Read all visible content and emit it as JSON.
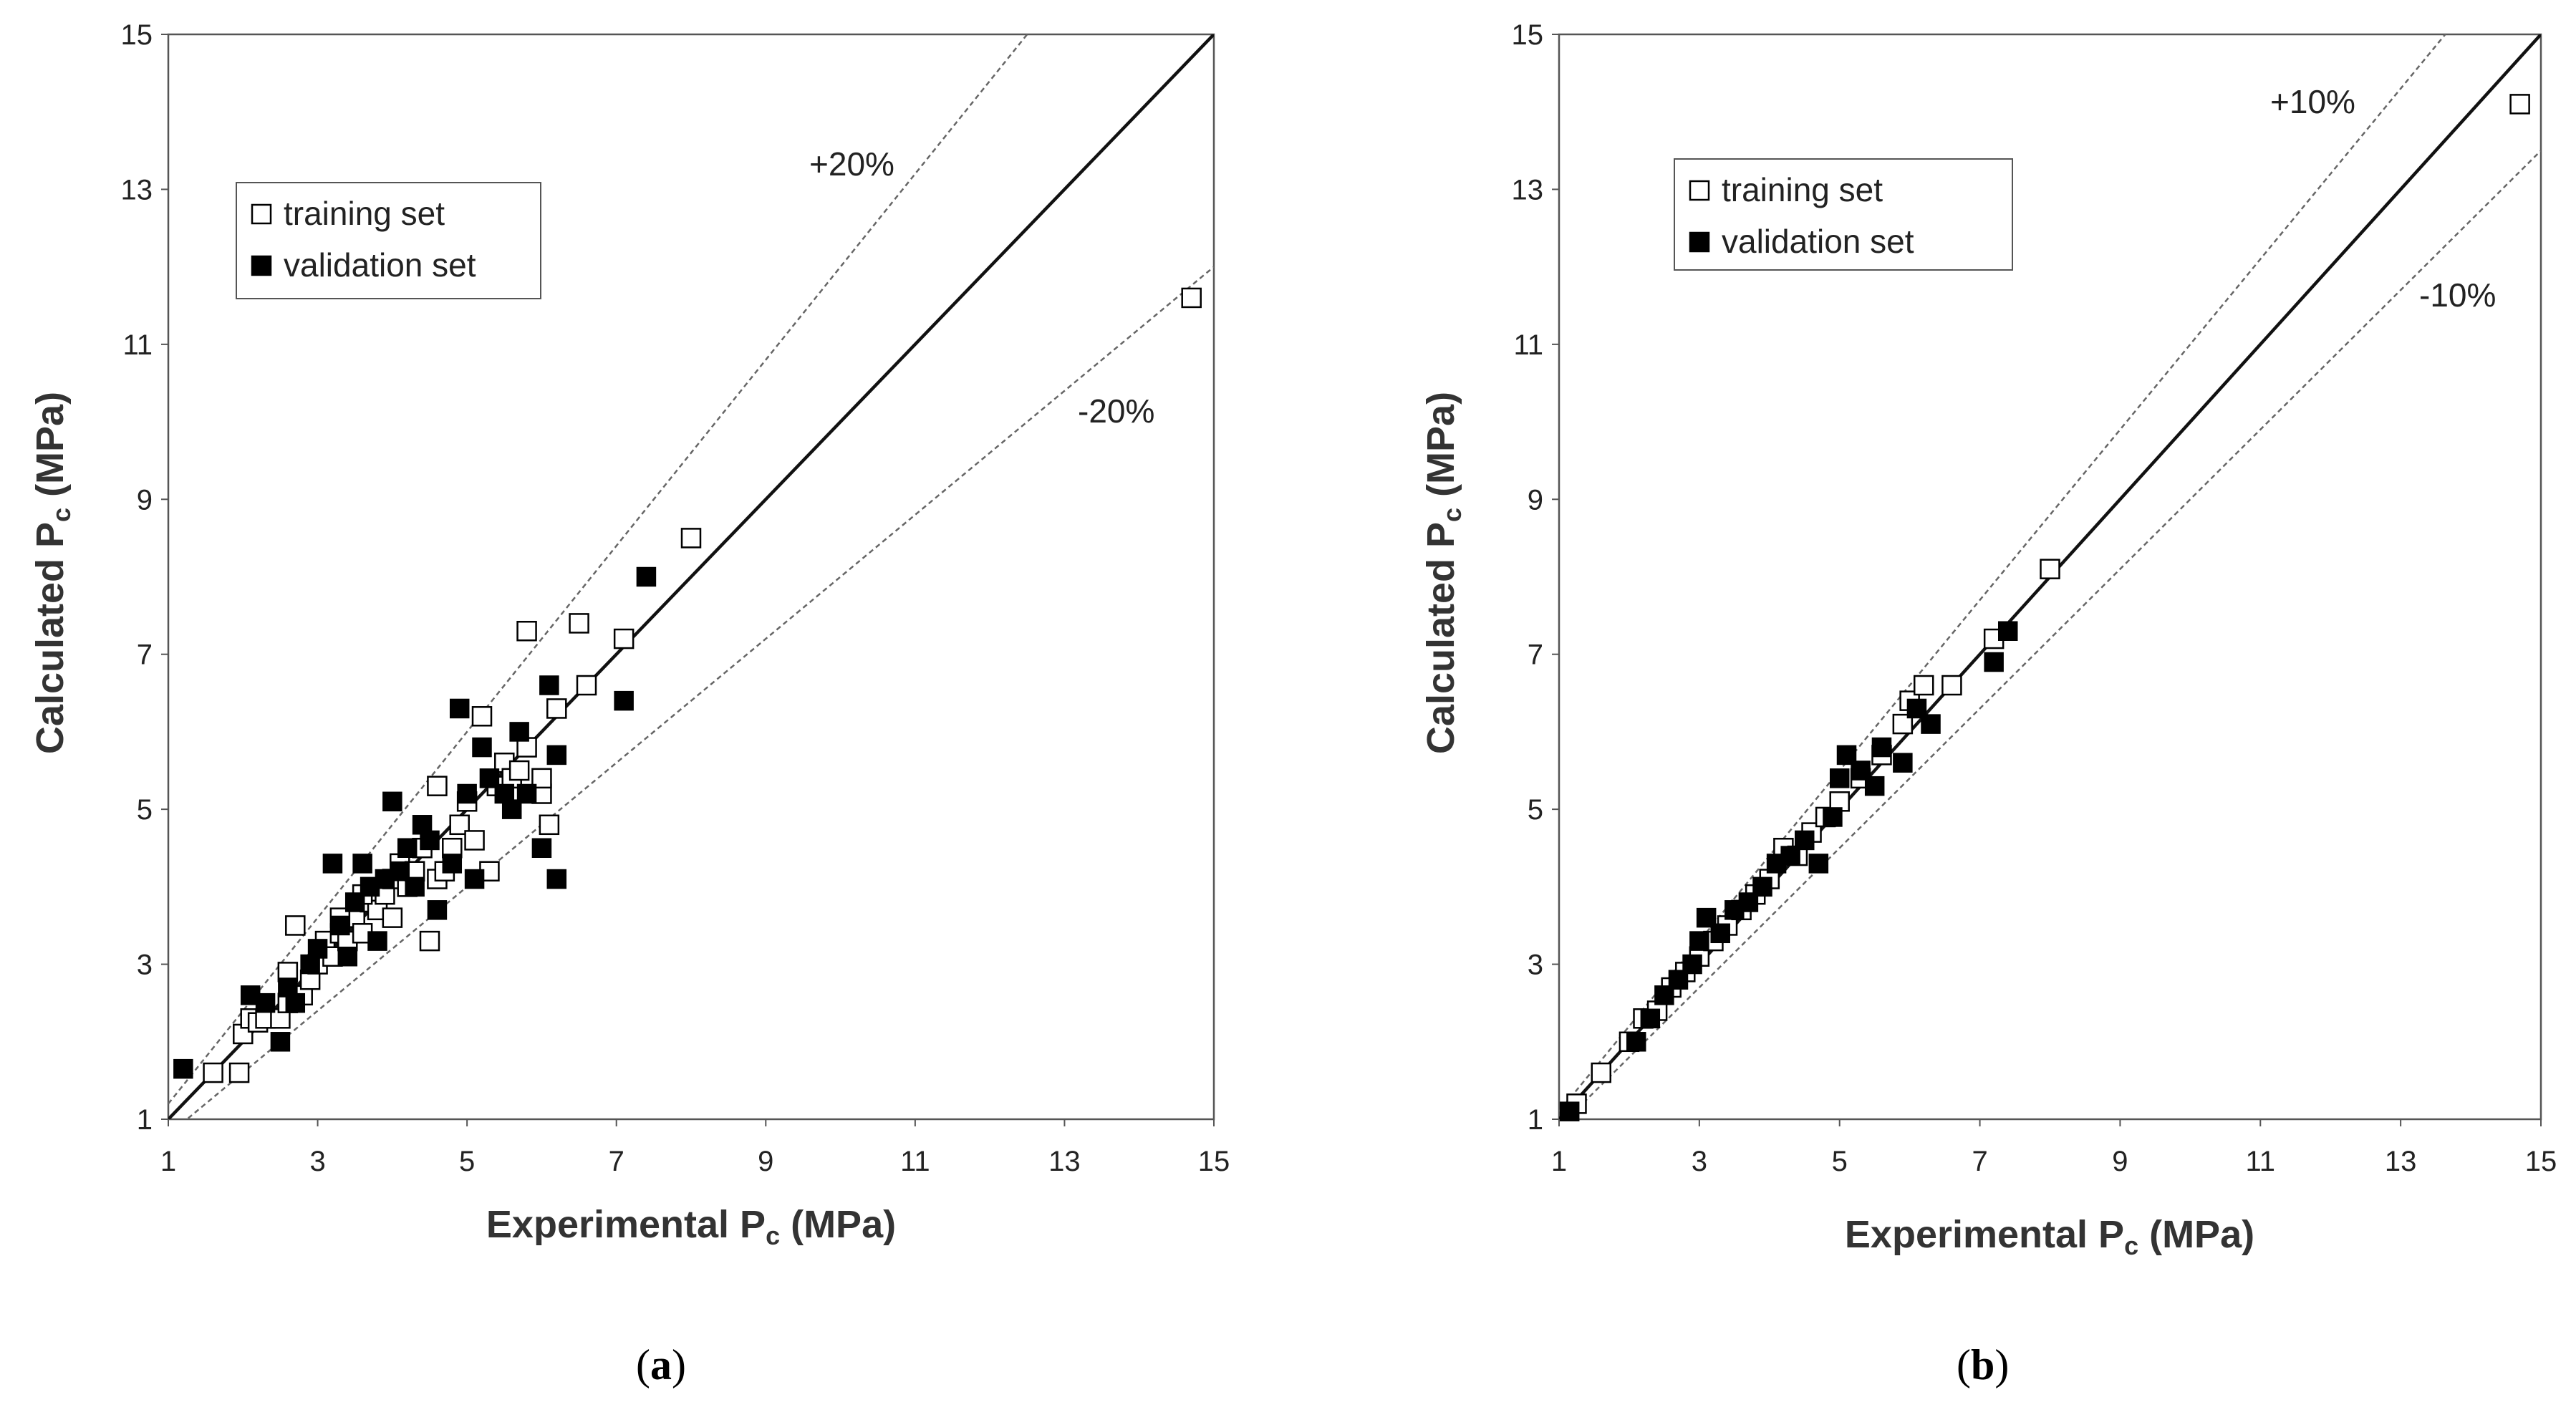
{
  "chart_data": [
    {
      "type": "scatter",
      "panel_label": "a",
      "xlabel_main": "Experimental",
      "ylabel_main": "Calculated",
      "var": "P",
      "var_sub": "c",
      "unit": "(MPa)",
      "xlim": [
        1,
        15
      ],
      "ylim": [
        1,
        15
      ],
      "xticks": [
        "1",
        "3",
        "5",
        "7",
        "9",
        "11",
        "13",
        "15"
      ],
      "yticks": [
        "1",
        "3",
        "5",
        "7",
        "9",
        "11",
        "13",
        "15"
      ],
      "legend": {
        "position": "top-left",
        "entries": [
          "training set",
          "validation set"
        ]
      },
      "deviation": 0.2,
      "annotations": {
        "upper": "+20%",
        "lower": "-20%"
      },
      "series": [
        {
          "name": "training set",
          "marker": "open-square",
          "points": [
            [
              1.6,
              1.6
            ],
            [
              1.95,
              1.6
            ],
            [
              2.0,
              2.1
            ],
            [
              2.1,
              2.3
            ],
            [
              2.2,
              2.25
            ],
            [
              2.3,
              2.3
            ],
            [
              2.5,
              2.3
            ],
            [
              2.6,
              2.5
            ],
            [
              2.6,
              2.9
            ],
            [
              2.7,
              3.5
            ],
            [
              2.8,
              2.6
            ],
            [
              2.9,
              2.8
            ],
            [
              3.0,
              3.0
            ],
            [
              3.1,
              3.3
            ],
            [
              3.2,
              3.1
            ],
            [
              3.3,
              3.4
            ],
            [
              3.4,
              3.3
            ],
            [
              3.5,
              3.6
            ],
            [
              3.6,
              3.4
            ],
            [
              3.7,
              3.8
            ],
            [
              3.8,
              3.7
            ],
            [
              3.9,
              3.9
            ],
            [
              4.0,
              4.1
            ],
            [
              4.1,
              4.3
            ],
            [
              4.2,
              4.0
            ],
            [
              4.3,
              4.2
            ],
            [
              4.4,
              4.5
            ],
            [
              4.5,
              3.3
            ],
            [
              4.6,
              4.1
            ],
            [
              4.7,
              4.2
            ],
            [
              4.8,
              4.5
            ],
            [
              4.9,
              4.8
            ],
            [
              5.0,
              5.1
            ],
            [
              5.1,
              4.6
            ],
            [
              5.2,
              6.2
            ],
            [
              5.3,
              4.2
            ],
            [
              5.4,
              5.3
            ],
            [
              5.5,
              5.6
            ],
            [
              5.6,
              5.4
            ],
            [
              5.7,
              5.5
            ],
            [
              5.8,
              7.3
            ],
            [
              5.8,
              5.8
            ],
            [
              6.0,
              5.2
            ],
            [
              6.0,
              5.4
            ],
            [
              6.1,
              4.8
            ],
            [
              6.2,
              6.3
            ],
            [
              6.5,
              7.4
            ],
            [
              6.6,
              6.6
            ],
            [
              7.1,
              7.2
            ],
            [
              8.0,
              8.5
            ],
            [
              4.6,
              5.3
            ],
            [
              3.3,
              3.6
            ],
            [
              3.6,
              3.9
            ],
            [
              4.0,
              3.6
            ],
            [
              14.7,
              11.6
            ]
          ]
        },
        {
          "name": "validation set",
          "marker": "filled-square",
          "points": [
            [
              1.2,
              1.65
            ],
            [
              2.1,
              2.6
            ],
            [
              2.3,
              2.5
            ],
            [
              2.5,
              2.0
            ],
            [
              2.6,
              2.7
            ],
            [
              2.7,
              2.5
            ],
            [
              2.9,
              3.0
            ],
            [
              3.0,
              3.2
            ],
            [
              3.2,
              4.3
            ],
            [
              3.3,
              3.5
            ],
            [
              3.4,
              3.1
            ],
            [
              3.5,
              3.8
            ],
            [
              3.6,
              4.3
            ],
            [
              3.7,
              4.0
            ],
            [
              3.8,
              3.3
            ],
            [
              3.9,
              4.1
            ],
            [
              4.0,
              5.1
            ],
            [
              4.1,
              4.2
            ],
            [
              4.2,
              4.5
            ],
            [
              4.3,
              4.0
            ],
            [
              4.4,
              4.8
            ],
            [
              4.5,
              4.6
            ],
            [
              4.6,
              3.7
            ],
            [
              4.8,
              4.3
            ],
            [
              4.9,
              6.3
            ],
            [
              5.0,
              5.2
            ],
            [
              5.1,
              4.1
            ],
            [
              5.2,
              5.8
            ],
            [
              5.3,
              5.4
            ],
            [
              5.5,
              5.2
            ],
            [
              5.6,
              5.0
            ],
            [
              5.7,
              6.0
            ],
            [
              5.8,
              5.2
            ],
            [
              6.0,
              4.5
            ],
            [
              6.1,
              6.6
            ],
            [
              6.2,
              5.7
            ],
            [
              6.2,
              4.1
            ],
            [
              7.1,
              6.4
            ],
            [
              7.4,
              8.0
            ]
          ]
        }
      ]
    },
    {
      "type": "scatter",
      "panel_label": "b",
      "xlabel_main": "Experimental",
      "ylabel_main": "Calculated",
      "var": "P",
      "var_sub": "c",
      "unit": "(MPa)",
      "xlim": [
        1,
        15
      ],
      "ylim": [
        1,
        15
      ],
      "xticks": [
        "1",
        "3",
        "5",
        "7",
        "9",
        "11",
        "13",
        "15"
      ],
      "yticks": [
        "1",
        "3",
        "5",
        "7",
        "9",
        "11",
        "13",
        "15"
      ],
      "legend": {
        "position": "top-left",
        "entries": [
          "training set",
          "validation set"
        ]
      },
      "deviation": 0.1,
      "annotations": {
        "upper": "+10%",
        "lower": "-10%"
      },
      "series": [
        {
          "name": "training set",
          "marker": "open-square",
          "points": [
            [
              1.25,
              1.2
            ],
            [
              1.6,
              1.6
            ],
            [
              2.0,
              2.0
            ],
            [
              2.2,
              2.3
            ],
            [
              2.4,
              2.4
            ],
            [
              2.6,
              2.7
            ],
            [
              2.8,
              2.9
            ],
            [
              3.0,
              3.1
            ],
            [
              3.2,
              3.3
            ],
            [
              3.4,
              3.5
            ],
            [
              3.6,
              3.7
            ],
            [
              3.8,
              3.9
            ],
            [
              4.0,
              4.1
            ],
            [
              4.2,
              4.5
            ],
            [
              4.4,
              4.4
            ],
            [
              4.6,
              4.7
            ],
            [
              4.8,
              4.9
            ],
            [
              5.0,
              5.1
            ],
            [
              5.3,
              5.4
            ],
            [
              5.6,
              5.7
            ],
            [
              5.9,
              6.1
            ],
            [
              6.0,
              6.4
            ],
            [
              6.2,
              6.6
            ],
            [
              6.6,
              6.6
            ],
            [
              7.2,
              7.2
            ],
            [
              8.0,
              8.1
            ],
            [
              14.7,
              14.1
            ]
          ]
        },
        {
          "name": "validation set",
          "marker": "filled-square",
          "points": [
            [
              1.15,
              1.1
            ],
            [
              2.1,
              2.0
            ],
            [
              2.3,
              2.3
            ],
            [
              2.5,
              2.6
            ],
            [
              2.7,
              2.8
            ],
            [
              2.9,
              3.0
            ],
            [
              3.0,
              3.3
            ],
            [
              3.1,
              3.6
            ],
            [
              3.3,
              3.4
            ],
            [
              3.5,
              3.7
            ],
            [
              3.7,
              3.8
            ],
            [
              3.9,
              4.0
            ],
            [
              4.1,
              4.3
            ],
            [
              4.3,
              4.4
            ],
            [
              4.5,
              4.6
            ],
            [
              4.7,
              4.3
            ],
            [
              4.9,
              4.9
            ],
            [
              5.0,
              5.4
            ],
            [
              5.1,
              5.7
            ],
            [
              5.3,
              5.5
            ],
            [
              5.5,
              5.3
            ],
            [
              5.6,
              5.8
            ],
            [
              5.9,
              5.6
            ],
            [
              6.1,
              6.3
            ],
            [
              6.3,
              6.1
            ],
            [
              7.2,
              6.9
            ],
            [
              7.4,
              7.3
            ]
          ]
        }
      ]
    }
  ]
}
